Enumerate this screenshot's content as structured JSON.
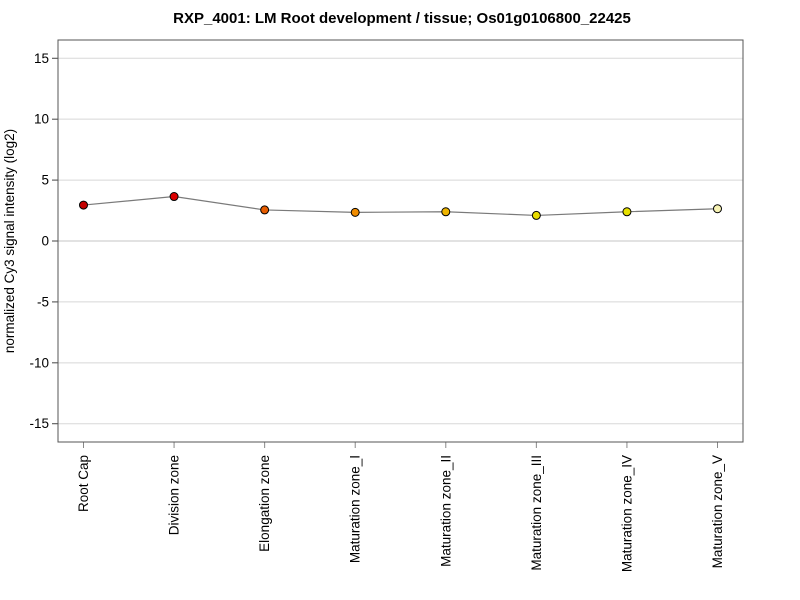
{
  "title": "RXP_4001: LM Root development / tissue; Os01g0106800_22425",
  "chart_data": {
    "type": "line",
    "title": "RXP_4001: LM Root development / tissue; Os01g0106800_22425",
    "xlabel": "",
    "ylabel": "normalized Cy3 signal intensity (log2)",
    "categories": [
      "Root Cap",
      "Division zone",
      "Elongation zone",
      "Maturation zone_I",
      "Maturation zone_II",
      "Maturation zone_III",
      "Maturation zone_IV",
      "Maturation zone_V"
    ],
    "series": [
      {
        "name": "normalized Cy3 signal intensity",
        "values": [
          2.95,
          3.65,
          2.55,
          2.35,
          2.4,
          2.1,
          2.4,
          2.65
        ],
        "point_colors": [
          "#c40000",
          "#dc0000",
          "#e65c00",
          "#f08c00",
          "#eeb400",
          "#e8dc00",
          "#e6e000",
          "#f6f2b4"
        ]
      }
    ],
    "ylim": [
      -16.5,
      16.5
    ],
    "yticks": [
      -15,
      -10,
      -5,
      0,
      5,
      10,
      15
    ],
    "grid": "horizontal",
    "legend_position": "none",
    "colors": {
      "line": "#7a7a7a",
      "marker_outline": "#000000",
      "grid": "#d8d8d8",
      "zero_grid": "#c4c4c4",
      "box": "#555555",
      "y_tick": "#444444",
      "x_tick": "#888888"
    }
  }
}
